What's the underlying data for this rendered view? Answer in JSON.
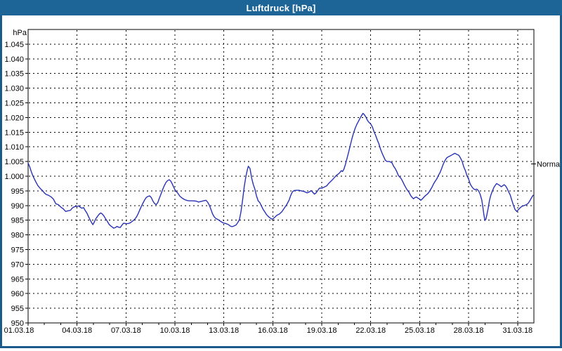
{
  "window": {
    "title": "Luftdruck [hPa]"
  },
  "colors": {
    "titlebar_bg": "#1d6497",
    "titlebar_text": "#ffffff",
    "frame_border": "#1b5b8c",
    "plot_bg": "#ffffff",
    "grid": "#000000",
    "axis": "#000000",
    "labels": "#000000",
    "series": "#2832b4"
  },
  "chart_data": {
    "type": "line",
    "title": "Luftdruck [hPa]",
    "grid": true,
    "y_axis": {
      "unit_label": "hPa",
      "range": [
        950,
        1050
      ],
      "ticks": [
        950,
        955,
        960,
        965,
        970,
        975,
        980,
        985,
        990,
        995,
        1000,
        1005,
        1010,
        1015,
        1020,
        1025,
        1030,
        1035,
        1040,
        1045
      ],
      "tick_labels": [
        "950",
        "955",
        "960",
        "965",
        "970",
        "975",
        "980",
        "985",
        "990",
        "995",
        "1.000",
        "1.005",
        "1.010",
        "1.015",
        "1.020",
        "1.025",
        "1.030",
        "1.035",
        "1.040",
        "1.045"
      ]
    },
    "x_axis": {
      "range_days": [
        1,
        32
      ],
      "labeled_days": [
        1,
        4,
        7,
        10,
        13,
        16,
        19,
        22,
        25,
        28,
        31
      ],
      "tick_labels": [
        "01.03.18",
        "04.03.18",
        "07.03.18",
        "10.03.18",
        "13.03.18",
        "16.03.18",
        "19.03.18",
        "22.03.18",
        "25.03.18",
        "28.03.18",
        "31.03.18"
      ],
      "minor_tick_every_days": 1
    },
    "annotation": {
      "label": "Normal",
      "value_hpa": 1004.2
    },
    "series": [
      {
        "name": "Luftdruck",
        "color": "#2832b4",
        "points_day_hpa": [
          [
            1.0,
            1004.5
          ],
          [
            1.1,
            1003.2
          ],
          [
            1.2,
            1001.5
          ],
          [
            1.3,
            1000.0
          ],
          [
            1.45,
            998.3
          ],
          [
            1.6,
            996.8
          ],
          [
            1.75,
            995.8
          ],
          [
            1.9,
            995.0
          ],
          [
            2.0,
            994.3
          ],
          [
            2.1,
            993.8
          ],
          [
            2.25,
            993.5
          ],
          [
            2.4,
            993.0
          ],
          [
            2.55,
            992.2
          ],
          [
            2.7,
            990.6
          ],
          [
            2.85,
            990.3
          ],
          [
            3.0,
            989.5
          ],
          [
            3.15,
            988.9
          ],
          [
            3.3,
            988.0
          ],
          [
            3.45,
            988.2
          ],
          [
            3.6,
            988.4
          ],
          [
            3.7,
            989.1
          ],
          [
            3.8,
            989.5
          ],
          [
            3.9,
            989.7
          ],
          [
            4.0,
            989.7
          ],
          [
            4.1,
            989.9
          ],
          [
            4.2,
            989.4
          ],
          [
            4.3,
            989.1
          ],
          [
            4.4,
            989.3
          ],
          [
            4.5,
            988.3
          ],
          [
            4.6,
            987.5
          ],
          [
            4.7,
            986.3
          ],
          [
            4.8,
            985.1
          ],
          [
            4.9,
            984.1
          ],
          [
            4.97,
            983.5
          ],
          [
            5.05,
            984.3
          ],
          [
            5.15,
            985.5
          ],
          [
            5.25,
            986.3
          ],
          [
            5.35,
            987.0
          ],
          [
            5.45,
            987.5
          ],
          [
            5.55,
            987.1
          ],
          [
            5.65,
            986.4
          ],
          [
            5.75,
            985.5
          ],
          [
            5.85,
            984.7
          ],
          [
            5.95,
            983.7
          ],
          [
            6.05,
            983.1
          ],
          [
            6.15,
            982.7
          ],
          [
            6.25,
            982.3
          ],
          [
            6.35,
            982.5
          ],
          [
            6.45,
            982.9
          ],
          [
            6.55,
            982.6
          ],
          [
            6.65,
            982.5
          ],
          [
            6.75,
            983.3
          ],
          [
            6.85,
            984.0
          ],
          [
            6.95,
            983.9
          ],
          [
            7.05,
            983.8
          ],
          [
            7.15,
            983.9
          ],
          [
            7.25,
            984.1
          ],
          [
            7.35,
            984.5
          ],
          [
            7.45,
            984.9
          ],
          [
            7.55,
            985.4
          ],
          [
            7.65,
            986.2
          ],
          [
            7.75,
            987.3
          ],
          [
            7.85,
            988.6
          ],
          [
            7.95,
            989.8
          ],
          [
            8.05,
            990.9
          ],
          [
            8.15,
            992.0
          ],
          [
            8.25,
            992.8
          ],
          [
            8.35,
            993.1
          ],
          [
            8.45,
            993.3
          ],
          [
            8.55,
            992.7
          ],
          [
            8.65,
            991.5
          ],
          [
            8.75,
            990.7
          ],
          [
            8.85,
            990.3
          ],
          [
            8.95,
            991.0
          ],
          [
            9.05,
            992.6
          ],
          [
            9.15,
            994.0
          ],
          [
            9.25,
            995.5
          ],
          [
            9.35,
            996.8
          ],
          [
            9.45,
            997.9
          ],
          [
            9.55,
            998.5
          ],
          [
            9.65,
            998.8
          ],
          [
            9.75,
            998.3
          ],
          [
            9.85,
            997.2
          ],
          [
            9.95,
            995.9
          ],
          [
            10.05,
            994.9
          ],
          [
            10.15,
            994.4
          ],
          [
            10.3,
            993.2
          ],
          [
            10.45,
            992.5
          ],
          [
            10.6,
            992.0
          ],
          [
            10.75,
            991.7
          ],
          [
            10.9,
            991.6
          ],
          [
            11.1,
            991.6
          ],
          [
            11.3,
            991.5
          ],
          [
            11.45,
            991.2
          ],
          [
            11.6,
            991.4
          ],
          [
            11.75,
            991.6
          ],
          [
            11.9,
            991.8
          ],
          [
            12.0,
            991.2
          ],
          [
            12.1,
            990.2
          ],
          [
            12.2,
            988.8
          ],
          [
            12.3,
            987.2
          ],
          [
            12.4,
            986.2
          ],
          [
            12.5,
            985.6
          ],
          [
            12.65,
            985.2
          ],
          [
            12.8,
            984.6
          ],
          [
            12.95,
            984.1
          ],
          [
            13.1,
            983.9
          ],
          [
            13.25,
            983.6
          ],
          [
            13.4,
            983.0
          ],
          [
            13.5,
            982.8
          ],
          [
            13.6,
            983.0
          ],
          [
            13.75,
            983.4
          ],
          [
            13.85,
            984.2
          ],
          [
            13.95,
            985.2
          ],
          [
            14.05,
            988.0
          ],
          [
            14.15,
            992.0
          ],
          [
            14.25,
            996.5
          ],
          [
            14.35,
            1000.0
          ],
          [
            14.45,
            1002.5
          ],
          [
            14.5,
            1003.4
          ],
          [
            14.6,
            1002.6
          ],
          [
            14.7,
            999.4
          ],
          [
            14.8,
            997.2
          ],
          [
            14.9,
            995.6
          ],
          [
            15.0,
            993.2
          ],
          [
            15.1,
            991.6
          ],
          [
            15.2,
            991.0
          ],
          [
            15.3,
            989.9
          ],
          [
            15.4,
            988.7
          ],
          [
            15.5,
            987.9
          ],
          [
            15.6,
            987.0
          ],
          [
            15.7,
            986.4
          ],
          [
            15.8,
            985.9
          ],
          [
            15.9,
            985.5
          ],
          [
            15.97,
            985.3
          ],
          [
            16.1,
            985.9
          ],
          [
            16.25,
            986.7
          ],
          [
            16.4,
            987.1
          ],
          [
            16.55,
            987.9
          ],
          [
            16.7,
            989.1
          ],
          [
            16.85,
            990.3
          ],
          [
            17.0,
            991.9
          ],
          [
            17.1,
            993.5
          ],
          [
            17.2,
            994.7
          ],
          [
            17.3,
            995.1
          ],
          [
            17.45,
            995.2
          ],
          [
            17.6,
            995.2
          ],
          [
            17.75,
            995.0
          ],
          [
            17.9,
            994.8
          ],
          [
            18.0,
            994.6
          ],
          [
            18.1,
            994.3
          ],
          [
            18.25,
            994.7
          ],
          [
            18.35,
            995.1
          ],
          [
            18.45,
            994.5
          ],
          [
            18.55,
            993.9
          ],
          [
            18.65,
            994.3
          ],
          [
            18.75,
            995.1
          ],
          [
            18.85,
            995.9
          ],
          [
            19.0,
            995.9
          ],
          [
            19.15,
            996.3
          ],
          [
            19.3,
            996.7
          ],
          [
            19.45,
            997.7
          ],
          [
            19.6,
            998.5
          ],
          [
            19.7,
            999.1
          ],
          [
            19.8,
            999.7
          ],
          [
            19.9,
            1000.3
          ],
          [
            20.0,
            1000.7
          ],
          [
            20.1,
            1001.2
          ],
          [
            20.2,
            1001.9
          ],
          [
            20.27,
            1001.6
          ],
          [
            20.35,
            1002.3
          ],
          [
            20.45,
            1004.0
          ],
          [
            20.55,
            1006.2
          ],
          [
            20.65,
            1008.3
          ],
          [
            20.75,
            1010.6
          ],
          [
            20.85,
            1012.8
          ],
          [
            20.95,
            1014.8
          ],
          [
            21.05,
            1016.4
          ],
          [
            21.15,
            1017.7
          ],
          [
            21.25,
            1018.7
          ],
          [
            21.35,
            1019.8
          ],
          [
            21.45,
            1020.8
          ],
          [
            21.52,
            1021.4
          ],
          [
            21.6,
            1021.0
          ],
          [
            21.7,
            1020.2
          ],
          [
            21.8,
            1019.0
          ],
          [
            21.9,
            1018.3
          ],
          [
            22.0,
            1017.8
          ],
          [
            22.1,
            1016.8
          ],
          [
            22.2,
            1015.2
          ],
          [
            22.3,
            1013.9
          ],
          [
            22.4,
            1012.4
          ],
          [
            22.5,
            1011.0
          ],
          [
            22.6,
            1009.2
          ],
          [
            22.7,
            1007.8
          ],
          [
            22.8,
            1006.6
          ],
          [
            22.9,
            1005.4
          ],
          [
            23.0,
            1005.0
          ],
          [
            23.15,
            1005.0
          ],
          [
            23.3,
            1004.6
          ],
          [
            23.4,
            1003.4
          ],
          [
            23.5,
            1002.6
          ],
          [
            23.6,
            1001.5
          ],
          [
            23.7,
            1000.2
          ],
          [
            23.85,
            999.3
          ],
          [
            23.95,
            998.3
          ],
          [
            24.05,
            997.1
          ],
          [
            24.15,
            996.1
          ],
          [
            24.25,
            995.2
          ],
          [
            24.35,
            994.5
          ],
          [
            24.45,
            993.4
          ],
          [
            24.55,
            992.7
          ],
          [
            24.62,
            992.3
          ],
          [
            24.7,
            992.7
          ],
          [
            24.8,
            992.9
          ],
          [
            24.9,
            992.5
          ],
          [
            25.0,
            992.2
          ],
          [
            25.07,
            991.8
          ],
          [
            25.15,
            992.2
          ],
          [
            25.25,
            992.8
          ],
          [
            25.35,
            993.4
          ],
          [
            25.45,
            993.8
          ],
          [
            25.55,
            994.4
          ],
          [
            25.65,
            995.3
          ],
          [
            25.75,
            996.2
          ],
          [
            25.85,
            997.4
          ],
          [
            25.95,
            998.3
          ],
          [
            26.05,
            999.1
          ],
          [
            26.15,
            1000.3
          ],
          [
            26.25,
            1001.3
          ],
          [
            26.35,
            1002.7
          ],
          [
            26.45,
            1004.2
          ],
          [
            26.55,
            1005.3
          ],
          [
            26.65,
            1006.2
          ],
          [
            26.75,
            1006.6
          ],
          [
            26.9,
            1007.0
          ],
          [
            27.05,
            1007.5
          ],
          [
            27.15,
            1007.8
          ],
          [
            27.3,
            1007.4
          ],
          [
            27.4,
            1007.1
          ],
          [
            27.5,
            1006.2
          ],
          [
            27.6,
            1005.1
          ],
          [
            27.7,
            1003.2
          ],
          [
            27.8,
            1001.9
          ],
          [
            27.9,
            1000.1
          ],
          [
            28.0,
            999.0
          ],
          [
            28.1,
            997.3
          ],
          [
            28.2,
            996.4
          ],
          [
            28.3,
            995.7
          ],
          [
            28.4,
            995.4
          ],
          [
            28.5,
            995.6
          ],
          [
            28.6,
            995.1
          ],
          [
            28.7,
            993.9
          ],
          [
            28.8,
            992.0
          ],
          [
            28.87,
            989.6
          ],
          [
            28.93,
            987.0
          ],
          [
            29.0,
            984.9
          ],
          [
            29.06,
            985.4
          ],
          [
            29.12,
            986.9
          ],
          [
            29.2,
            989.2
          ],
          [
            29.28,
            991.8
          ],
          [
            29.35,
            993.4
          ],
          [
            29.45,
            994.9
          ],
          [
            29.55,
            996.2
          ],
          [
            29.65,
            997.0
          ],
          [
            29.72,
            997.5
          ],
          [
            29.8,
            997.2
          ],
          [
            29.9,
            996.9
          ],
          [
            30.0,
            996.4
          ],
          [
            30.1,
            996.8
          ],
          [
            30.17,
            997.1
          ],
          [
            30.25,
            996.8
          ],
          [
            30.35,
            995.9
          ],
          [
            30.45,
            994.7
          ],
          [
            30.55,
            993.6
          ],
          [
            30.65,
            991.8
          ],
          [
            30.75,
            990.0
          ],
          [
            30.85,
            988.6
          ],
          [
            30.95,
            988.0
          ],
          [
            31.05,
            988.6
          ],
          [
            31.15,
            989.2
          ],
          [
            31.25,
            989.7
          ],
          [
            31.35,
            989.9
          ],
          [
            31.45,
            990.1
          ],
          [
            31.55,
            990.3
          ],
          [
            31.65,
            990.8
          ],
          [
            31.75,
            991.6
          ],
          [
            31.85,
            992.6
          ],
          [
            31.95,
            993.5
          ]
        ]
      }
    ]
  }
}
